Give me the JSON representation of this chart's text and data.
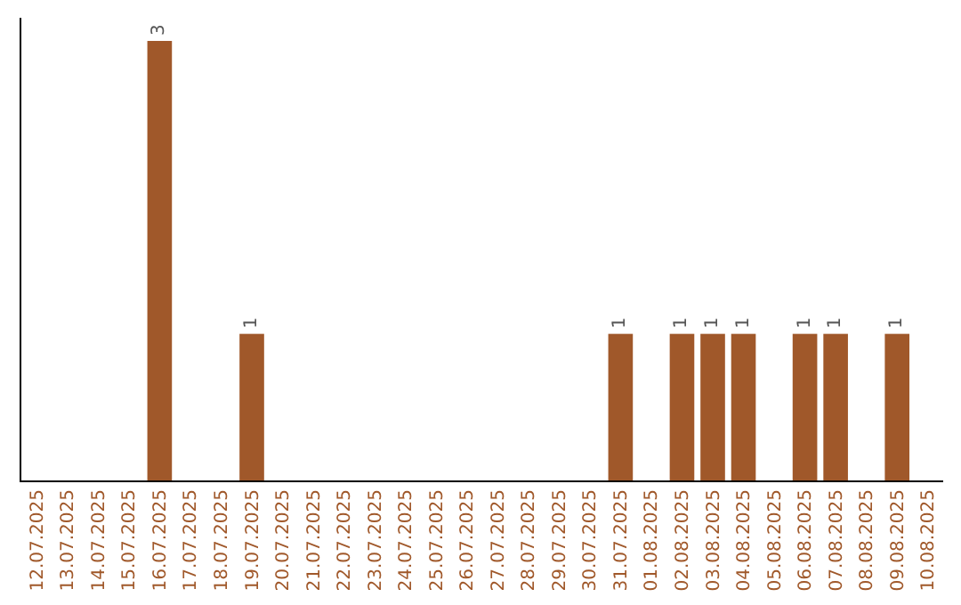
{
  "chart_data": {
    "type": "bar",
    "categories": [
      "12.07.2025",
      "13.07.2025",
      "14.07.2025",
      "15.07.2025",
      "16.07.2025",
      "17.07.2025",
      "18.07.2025",
      "19.07.2025",
      "20.07.2025",
      "21.07.2025",
      "22.07.2025",
      "23.07.2025",
      "24.07.2025",
      "25.07.2025",
      "26.07.2025",
      "27.07.2025",
      "28.07.2025",
      "29.07.2025",
      "30.07.2025",
      "31.07.2025",
      "01.08.2025",
      "02.08.2025",
      "03.08.2025",
      "04.08.2025",
      "05.08.2025",
      "06.08.2025",
      "07.08.2025",
      "08.08.2025",
      "09.08.2025",
      "10.08.2025"
    ],
    "values": [
      0,
      0,
      0,
      0,
      3,
      0,
      0,
      1,
      0,
      0,
      0,
      0,
      0,
      0,
      0,
      0,
      0,
      0,
      0,
      1,
      0,
      1,
      1,
      1,
      0,
      1,
      1,
      0,
      1,
      0
    ],
    "value_labels": [
      null,
      null,
      null,
      null,
      "3",
      null,
      null,
      "1",
      null,
      null,
      null,
      null,
      null,
      null,
      null,
      null,
      null,
      null,
      null,
      "1",
      null,
      "1",
      "1",
      "1",
      null,
      "1",
      "1",
      null,
      "1",
      null
    ],
    "color": "#a0582a",
    "grid": false,
    "legend": false,
    "tick_labels": "x"
  }
}
